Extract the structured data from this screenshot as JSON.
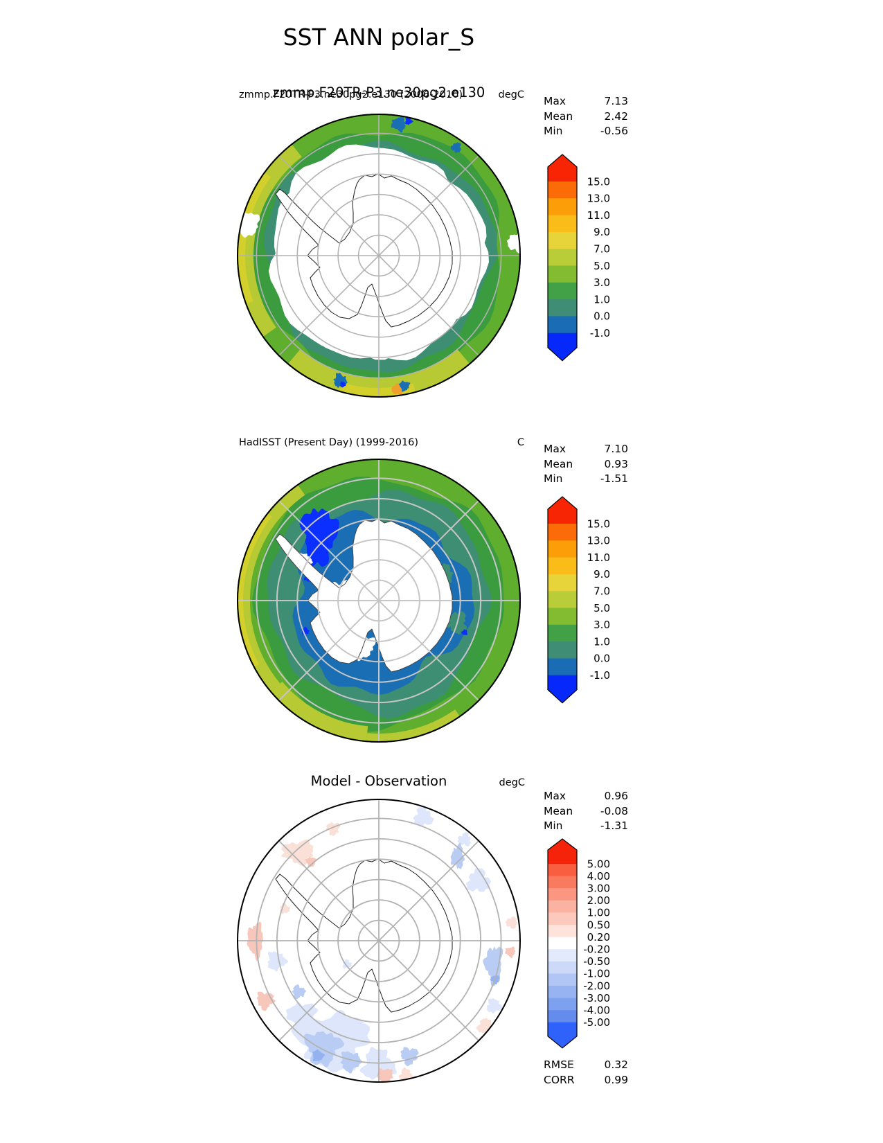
{
  "figure_title": "SST ANN polar_S",
  "panels": [
    {
      "name": "model",
      "title_left": "zmmp.F20TR-P3.ne30pg2.e130 (2006-2010)",
      "title_center": "zmmp.F20TR-P3.ne30pg2.e130",
      "units": "degC",
      "stats": {
        "rows": [
          [
            "Max",
            "7.13"
          ],
          [
            "Mean",
            "2.42"
          ],
          [
            "Min",
            "-0.56"
          ]
        ]
      }
    },
    {
      "name": "observation",
      "title_left": "HadISST (Present Day) (1999-2016)",
      "title_center": "",
      "units": "C",
      "stats": {
        "rows": [
          [
            "Max",
            "7.10"
          ],
          [
            "Mean",
            "0.93"
          ],
          [
            "Min",
            "-1.51"
          ]
        ]
      }
    },
    {
      "name": "difference",
      "title_left": "",
      "title_center": "Model - Observation",
      "units": "degC",
      "stats": {
        "rows": [
          [
            "Max",
            "0.96"
          ],
          [
            "Mean",
            "-0.08"
          ],
          [
            "Min",
            "-1.31"
          ]
        ]
      },
      "metrics": {
        "rows": [
          [
            "RMSE",
            "0.32"
          ],
          [
            "CORR",
            "0.99"
          ]
        ]
      }
    }
  ],
  "colorbar_sst": {
    "ticks": [
      "15.0",
      "13.0",
      "11.0",
      "9.0",
      "7.0",
      "5.0",
      "3.0",
      "1.0",
      "0.0",
      "-1.0"
    ],
    "cap_top": "#f82504",
    "segments": [
      "#fb6c09",
      "#fb9e07",
      "#f9bc19",
      "#e7d33a",
      "#b8cd37",
      "#83bc30",
      "#42a147",
      "#3e8d74",
      "#1a6cb4"
    ],
    "cap_bottom": "#0728fa"
  },
  "colorbar_diff": {
    "ticks": [
      "5.00",
      "4.00",
      "3.00",
      "2.00",
      "1.00",
      "0.50",
      "0.20",
      "-0.20",
      "-0.50",
      "-1.00",
      "-2.00",
      "-3.00",
      "-4.00",
      "-5.00"
    ],
    "cap_top": "#f6230b",
    "segments": [
      "#f95e41",
      "#fa7a60",
      "#fb9680",
      "#fcb2a0",
      "#fdc9bc",
      "#fee3db",
      "#ffffff",
      "#e3eafb",
      "#ccd9f8",
      "#b2c6f5",
      "#98b3f2",
      "#7da0ef",
      "#638cec"
    ],
    "cap_bottom": "#2e62fb"
  },
  "map_palette": {
    "white": "#ffffff",
    "green": "#5fae2e",
    "dark_green": "#3b9b3f",
    "teal": "#3e8e74",
    "yellow_green": "#b7ca33",
    "yellow": "#d3d02c",
    "orange": "#f0a02a",
    "steel_blue": "#1a6eb4",
    "deep_blue": "#0a2fff",
    "diff_blue_1": "#dde6fa",
    "diff_blue_2": "#b9ccf3",
    "diff_blue_3": "#94b2ef",
    "diff_red_1": "#fbe0d8",
    "diff_red_2": "#f6c7ba",
    "grid": "#b2b2b2",
    "grid2": "#c6c6c6",
    "coast": "#1a1a1a",
    "coast2": "#444444",
    "rim": "#000000"
  },
  "chart_data": [
    {
      "type": "heatmap",
      "subtype": "south-polar-stereographic-map",
      "variable": "SST",
      "season": "ANN",
      "title": "zmmp.F20TR-P3.ne30pg2.e130 (2006-2010)",
      "units": "degC",
      "stats": {
        "max": 7.13,
        "mean": 2.42,
        "min": -0.56
      },
      "colorbar_ticks": [
        15.0,
        13.0,
        11.0,
        9.0,
        7.0,
        5.0,
        3.0,
        1.0,
        0.0,
        -1.0
      ],
      "colorbar_extend": "both",
      "grid": true,
      "description": "Model annual-mean SST, 55S-90S. Interior ocean around Antarctica white (below -1 degC); teal 0-1 degC band, green 1-7 degC annulus, yellow-green up to ~9 degC at the 55S rim on the west and south sides; small blue (<0 degC) patches near the ice edge."
    },
    {
      "type": "heatmap",
      "subtype": "south-polar-stereographic-map",
      "variable": "SST",
      "season": "ANN",
      "title": "HadISST (Present Day) (1999-2016)",
      "units": "C",
      "stats": {
        "max": 7.1,
        "mean": 0.93,
        "min": -1.51
      },
      "colorbar_ticks": [
        15.0,
        13.0,
        11.0,
        9.0,
        7.0,
        5.0,
        3.0,
        1.0,
        0.0,
        -1.0
      ],
      "colorbar_extend": "both",
      "grid": true,
      "description": "HadISST observed annual-mean SST. Broad 0 to -1 degC (steel blue) ocean surrounds Antarctica up to ~60S, bright blue <-1 degC pocket in the Weddell Sea, teal/green/yellow-green annulus toward 55S."
    },
    {
      "type": "heatmap",
      "subtype": "south-polar-stereographic-map",
      "variable": "SST bias",
      "season": "ANN",
      "title": "Model - Observation",
      "units": "degC",
      "stats": {
        "max": 0.96,
        "mean": -0.08,
        "min": -1.31,
        "rmse": 0.32,
        "corr": 0.99
      },
      "colorbar_ticks": [
        5.0,
        4.0,
        3.0,
        2.0,
        1.0,
        0.5,
        0.2,
        -0.2,
        -0.5,
        -1.0,
        -2.0,
        -3.0,
        -4.0,
        -5.0
      ],
      "colorbar_extend": "both",
      "grid": true,
      "description": "Difference map mostly within +/-0.2 degC (white); patchy weak cold bias (light blue, -0.2 to -1 degC) near 55-65S especially southwest and southeast sectors; scattered weak warm patches (light red, 0.2-1 degC) along the western and northern rim."
    }
  ]
}
